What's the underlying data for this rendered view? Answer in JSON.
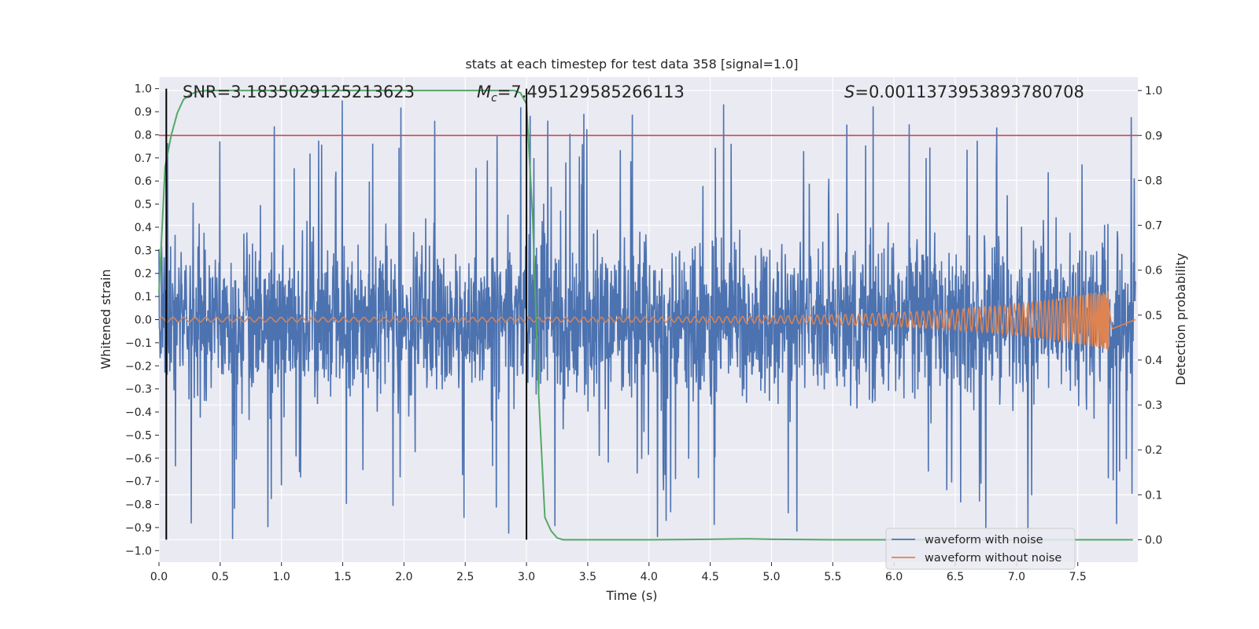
{
  "chart_data": {
    "type": "line",
    "title": "stats at each timestep for test data 358 [signal=1.0]",
    "xlabel": "Time (s)",
    "ylabel": "Whitened strain",
    "ylabel_right": "Detection probability",
    "xlim": [
      0.0,
      7.99
    ],
    "ylim": [
      -1.05,
      1.05
    ],
    "ylim_right": [
      -0.05,
      1.03
    ],
    "x_ticks": [
      0.0,
      0.5,
      1.0,
      1.5,
      2.0,
      2.5,
      3.0,
      3.5,
      4.0,
      4.5,
      5.0,
      5.5,
      6.0,
      6.5,
      7.0,
      7.5
    ],
    "x_tick_labels": [
      "0.0",
      "0.5",
      "1.0",
      "1.5",
      "2.0",
      "2.5",
      "3.0",
      "3.5",
      "4.0",
      "4.5",
      "5.0",
      "5.5",
      "6.0",
      "6.5",
      "7.0",
      "7.5"
    ],
    "y_ticks": [
      1.0,
      0.9,
      0.8,
      0.7,
      0.6,
      0.5,
      0.4,
      0.3,
      0.2,
      0.1,
      0.0,
      -0.1,
      -0.2,
      -0.3,
      -0.4,
      -0.5,
      -0.6,
      -0.7,
      -0.8,
      -0.9,
      -1.0
    ],
    "y_tick_labels": [
      "1.0",
      "0.9",
      "0.8",
      "0.7",
      "0.6",
      "0.5",
      "0.4",
      "0.3",
      "0.2",
      "0.1",
      "0.0",
      "−0.1",
      "−0.2",
      "−0.3",
      "−0.4",
      "−0.5",
      "−0.6",
      "−0.7",
      "−0.8",
      "−0.9",
      "−1.0"
    ],
    "y_ticks_right": [
      1.0,
      0.9,
      0.8,
      0.7,
      0.6,
      0.5,
      0.4,
      0.3,
      0.2,
      0.1,
      0.0
    ],
    "y_tick_labels_right": [
      "1.0",
      "0.9",
      "0.8",
      "0.7",
      "0.6",
      "0.5",
      "0.4",
      "0.3",
      "0.2",
      "0.1",
      "0.0"
    ],
    "grid": true,
    "legend_position": "lower-right",
    "annotations": {
      "snr": "SNR=3.1835029125213623",
      "mc_symbol": "M",
      "mc_subscript": "c",
      "mc_value": "=7.495129585266113",
      "s_symbol": "S",
      "s_value": "=0.0011373953893780708"
    },
    "series": [
      {
        "name": "waveform with noise",
        "color": "#4c72b0",
        "style": "dense-noise",
        "approx_amplitude": 0.45,
        "peak_amplitude": 1.0
      },
      {
        "name": "waveform without noise",
        "color": "#dd8452",
        "style": "chirp",
        "start_amplitude": 0.01,
        "peak_amplitude": 0.13,
        "merger_time": 7.75
      },
      {
        "name": "detection probability",
        "color": "#55a868",
        "axis": "right",
        "x": [
          0.0,
          0.05,
          0.1,
          0.15,
          0.2,
          0.25,
          0.3,
          0.4,
          0.5,
          1.0,
          1.5,
          2.0,
          2.5,
          2.9,
          2.95,
          3.0,
          3.05,
          3.1,
          3.15,
          3.2,
          3.25,
          3.3,
          3.5,
          4.0,
          4.5,
          4.8,
          5.0,
          5.5,
          6.0,
          6.5,
          7.0,
          7.5,
          7.95
        ],
        "values": [
          0.55,
          0.83,
          0.9,
          0.95,
          0.98,
          0.99,
          0.997,
          1.0,
          1.0,
          1.0,
          1.0,
          1.0,
          1.0,
          1.0,
          0.995,
          0.97,
          0.72,
          0.32,
          0.05,
          0.02,
          0.004,
          0.0,
          0.0,
          0.0,
          0.001,
          0.002,
          0.001,
          0.0,
          0.0,
          0.0,
          0.0,
          0.0,
          0.0
        ]
      },
      {
        "name": "threshold",
        "color": "#c44e52",
        "axis": "right",
        "values": [
          0.9
        ]
      }
    ],
    "vertical_markers": [
      0.06,
      3.0
    ],
    "colors": {
      "plot_bg": "#eaeaf2",
      "grid": "#ffffff",
      "text": "#262626",
      "marker": "#000000"
    }
  }
}
